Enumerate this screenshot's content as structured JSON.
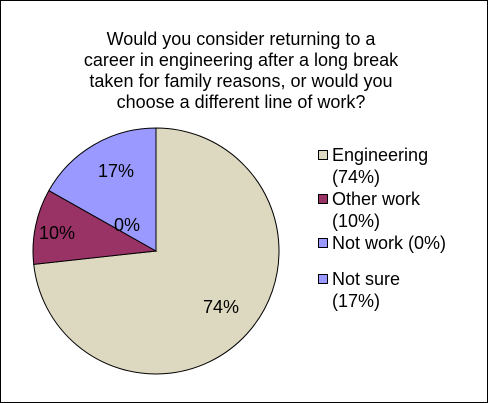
{
  "chart_data": {
    "type": "pie",
    "title_lines": [
      "Would you consider returning to a",
      "career in engineering after a long break",
      "taken for family reasons, or would you",
      "choose a different line of work?"
    ],
    "slices": [
      {
        "label_lines": [
          "Engineering",
          "(74%)"
        ],
        "value": 74,
        "display": "74%",
        "color": "#DDD8C0"
      },
      {
        "label_lines": [
          "Other work",
          "(10%)"
        ],
        "value": 10,
        "display": "10%",
        "color": "#993366"
      },
      {
        "label_lines": [
          "Not work (0%)"
        ],
        "value": 0,
        "display": "0%",
        "color": "#9999FF"
      },
      {
        "label_lines": [
          "Not sure",
          "(17%)"
        ],
        "value": 17,
        "display": "17%",
        "color": "#9999FF"
      }
    ],
    "legend_position": "right"
  }
}
